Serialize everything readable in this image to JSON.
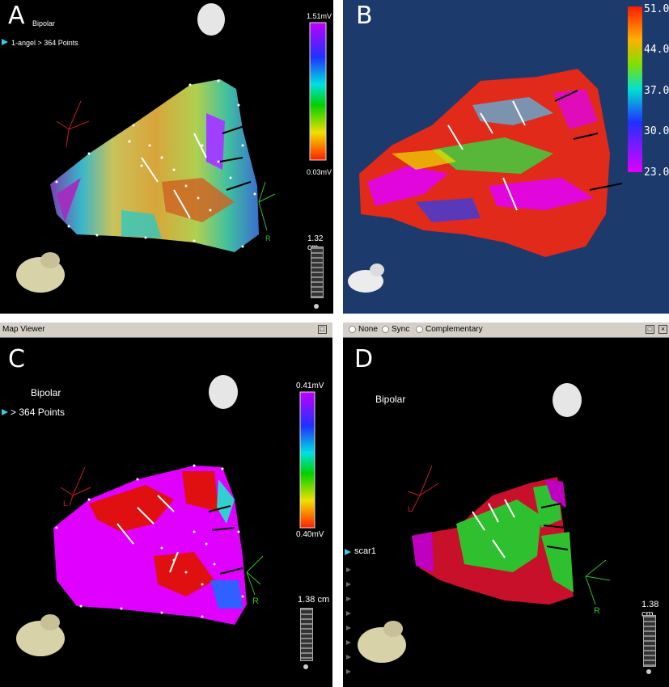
{
  "panelA": {
    "letter": "A",
    "mode": "Bipolar",
    "points": "1-angel > 364 Points",
    "colorbar": {
      "max": "1.51mV",
      "min": "0.03mV"
    },
    "scale": "1.32 cm",
    "axis_label": "R"
  },
  "panelB": {
    "letter": "B",
    "colorbar_ticks": [
      "51.0",
      "44.0",
      "37.0",
      "30.0",
      "23.0"
    ]
  },
  "panelC": {
    "window_title": "Map Viewer",
    "letter": "C",
    "mode": "Bipolar",
    "points": "> 364 Points",
    "colorbar": {
      "max": "0.41mV",
      "min": "0.40mV"
    },
    "scale": "1.38 cm",
    "axis_label_l": "L",
    "axis_label_r": "R"
  },
  "panelD": {
    "options": [
      "None",
      "Sync",
      "Complementary"
    ],
    "letter": "D",
    "mode": "Bipolar",
    "layer": "scar1",
    "scale": "1.38 cm",
    "axis_label_l": "L",
    "axis_label_r": "R"
  },
  "colors": {
    "panel_bg": "#000000",
    "panel_b_bg": "#1d3a6c",
    "window_chrome": "#d4d0c8",
    "marker": "#3ec9e0"
  }
}
